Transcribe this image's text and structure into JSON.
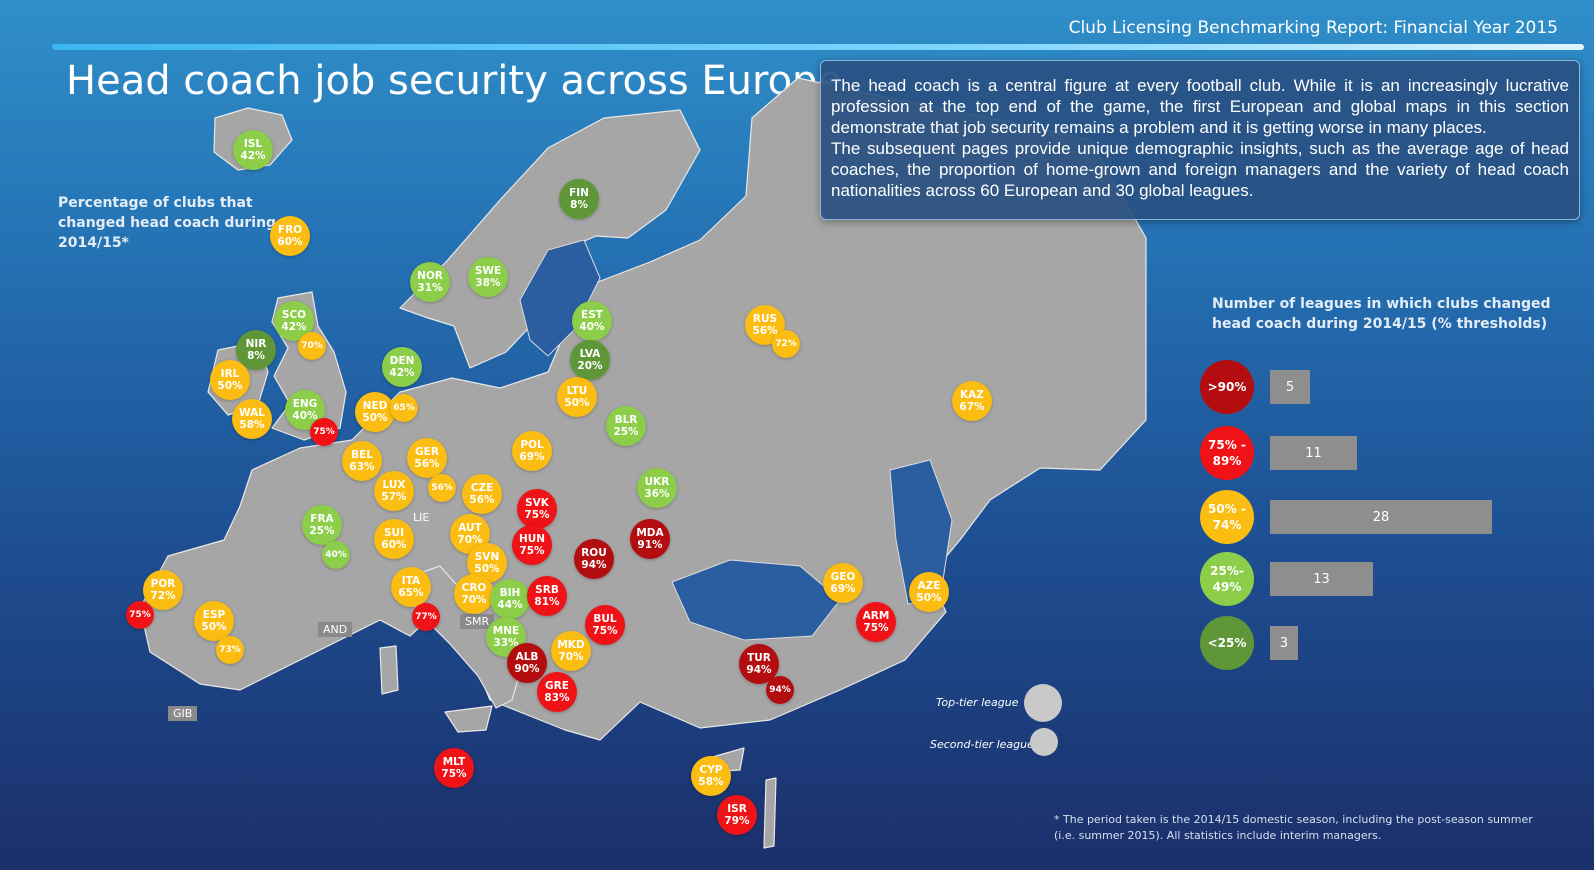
{
  "header": {
    "report_title": "Club Licensing Benchmarking Report: Financial Year 2015",
    "main_title": "Head coach job security across Europe"
  },
  "intro": {
    "paragraph_1": "The head coach is a central figure at every football club. While it is an increasingly lucrative profession at the top end of the game, the first European and global maps in this section demonstrate that job security remains a problem and it is getting worse in many places.",
    "paragraph_2": "The subsequent pages provide unique demographic insights, such as the average age of head coaches, the proportion of home-grown and foreign managers and the variety of head coach nationalities across 60 European and 30 global leagues."
  },
  "map": {
    "label": "Percentage of clubs that changed head coach during 2014/15*",
    "colors": {
      "over90": "#b40d10",
      "75to89": "#ef1216",
      "50to74": "#fbbd12",
      "25to49": "#8ccd4a",
      "under25": "#5f9637",
      "land": "#a6a6a6"
    },
    "top_tier": [
      {
        "code": "ISL",
        "pct": "42%",
        "band": "25to49"
      },
      {
        "code": "FRO",
        "pct": "60%",
        "band": "50to74"
      },
      {
        "code": "FIN",
        "pct": "8%",
        "band": "under25"
      },
      {
        "code": "NOR",
        "pct": "31%",
        "band": "25to49"
      },
      {
        "code": "SWE",
        "pct": "38%",
        "band": "25to49"
      },
      {
        "code": "SCO",
        "pct": "42%",
        "band": "25to49"
      },
      {
        "code": "NIR",
        "pct": "8%",
        "band": "under25"
      },
      {
        "code": "IRL",
        "pct": "50%",
        "band": "50to74"
      },
      {
        "code": "WAL",
        "pct": "58%",
        "band": "50to74"
      },
      {
        "code": "ENG",
        "pct": "40%",
        "band": "25to49"
      },
      {
        "code": "DEN",
        "pct": "42%",
        "band": "25to49"
      },
      {
        "code": "EST",
        "pct": "40%",
        "band": "25to49"
      },
      {
        "code": "LVA",
        "pct": "20%",
        "band": "under25"
      },
      {
        "code": "LTU",
        "pct": "50%",
        "band": "50to74"
      },
      {
        "code": "RUS",
        "pct": "56%",
        "band": "50to74"
      },
      {
        "code": "KAZ",
        "pct": "67%",
        "band": "50to74"
      },
      {
        "code": "NED",
        "pct": "50%",
        "band": "50to74"
      },
      {
        "code": "BEL",
        "pct": "63%",
        "band": "50to74"
      },
      {
        "code": "GER",
        "pct": "56%",
        "band": "50to74"
      },
      {
        "code": "POL",
        "pct": "69%",
        "band": "50to74"
      },
      {
        "code": "BLR",
        "pct": "25%",
        "band": "25to49"
      },
      {
        "code": "LUX",
        "pct": "57%",
        "band": "50to74"
      },
      {
        "code": "CZE",
        "pct": "56%",
        "band": "50to74"
      },
      {
        "code": "UKR",
        "pct": "36%",
        "band": "25to49"
      },
      {
        "code": "SVK",
        "pct": "75%",
        "band": "75to89"
      },
      {
        "code": "FRA",
        "pct": "25%",
        "band": "25to49"
      },
      {
        "code": "SUI",
        "pct": "60%",
        "band": "50to74"
      },
      {
        "code": "AUT",
        "pct": "70%",
        "band": "50to74"
      },
      {
        "code": "HUN",
        "pct": "75%",
        "band": "75to89"
      },
      {
        "code": "MDA",
        "pct": "91%",
        "band": "over90"
      },
      {
        "code": "ROU",
        "pct": "94%",
        "band": "over90"
      },
      {
        "code": "SVN",
        "pct": "50%",
        "band": "50to74"
      },
      {
        "code": "POR",
        "pct": "72%",
        "band": "50to74"
      },
      {
        "code": "ITA",
        "pct": "65%",
        "band": "50to74"
      },
      {
        "code": "CRO",
        "pct": "70%",
        "band": "50to74"
      },
      {
        "code": "BIH",
        "pct": "44%",
        "band": "25to49"
      },
      {
        "code": "SRB",
        "pct": "81%",
        "band": "75to89"
      },
      {
        "code": "GEO",
        "pct": "69%",
        "band": "50to74"
      },
      {
        "code": "AZE",
        "pct": "50%",
        "band": "50to74"
      },
      {
        "code": "ESP",
        "pct": "50%",
        "band": "50to74"
      },
      {
        "code": "ARM",
        "pct": "75%",
        "band": "75to89"
      },
      {
        "code": "BUL",
        "pct": "75%",
        "band": "75to89"
      },
      {
        "code": "MNE",
        "pct": "33%",
        "band": "25to49"
      },
      {
        "code": "MKD",
        "pct": "70%",
        "band": "50to74"
      },
      {
        "code": "ALB",
        "pct": "90%",
        "band": "over90"
      },
      {
        "code": "TUR",
        "pct": "94%",
        "band": "over90"
      },
      {
        "code": "GRE",
        "pct": "83%",
        "band": "75to89"
      },
      {
        "code": "MLT",
        "pct": "75%",
        "band": "75to89"
      },
      {
        "code": "CYP",
        "pct": "58%",
        "band": "50to74"
      },
      {
        "code": "ISR",
        "pct": "79%",
        "band": "75to89"
      }
    ],
    "second_tier": [
      {
        "pct": "70%",
        "band": "50to74",
        "near": "SCO"
      },
      {
        "pct": "72%",
        "band": "50to74",
        "near": "RUS"
      },
      {
        "pct": "65%",
        "band": "50to74",
        "near": "NED"
      },
      {
        "pct": "75%",
        "band": "75to89",
        "near": "ENG"
      },
      {
        "pct": "56%",
        "band": "50to74",
        "near": "GER"
      },
      {
        "pct": "40%",
        "band": "25to49",
        "near": "FRA"
      },
      {
        "pct": "75%",
        "band": "75to89",
        "near": "POR"
      },
      {
        "pct": "77%",
        "band": "75to89",
        "near": "ITA"
      },
      {
        "pct": "73%",
        "band": "50to74",
        "near": "ESP"
      },
      {
        "pct": "94%",
        "band": "over90",
        "near": "TUR"
      }
    ],
    "small_states": [
      "LIE",
      "AND",
      "SMR",
      "GIB"
    ],
    "size_key": {
      "top_tier_label": "Top-tier league",
      "second_tier_label": "Second-tier league"
    }
  },
  "legend": {
    "title": "Number of leagues in which clubs changed head coach during 2014/15 (% thresholds)",
    "max_count": 28,
    "rows": [
      {
        "label": ">90%",
        "band": "over90",
        "count": 5
      },
      {
        "label": "75% - 89%",
        "band": "75to89",
        "count": 11
      },
      {
        "label": "50% - 74%",
        "band": "50to74",
        "count": 28
      },
      {
        "label": "25%- 49%",
        "band": "25to49",
        "count": 13
      },
      {
        "label": "<25%",
        "band": "under25",
        "count": 3
      }
    ]
  },
  "footnote": "* The period taken is the 2014/15 domestic season, including the post-season summer (i.e. summer 2015). All statistics include interim managers."
}
